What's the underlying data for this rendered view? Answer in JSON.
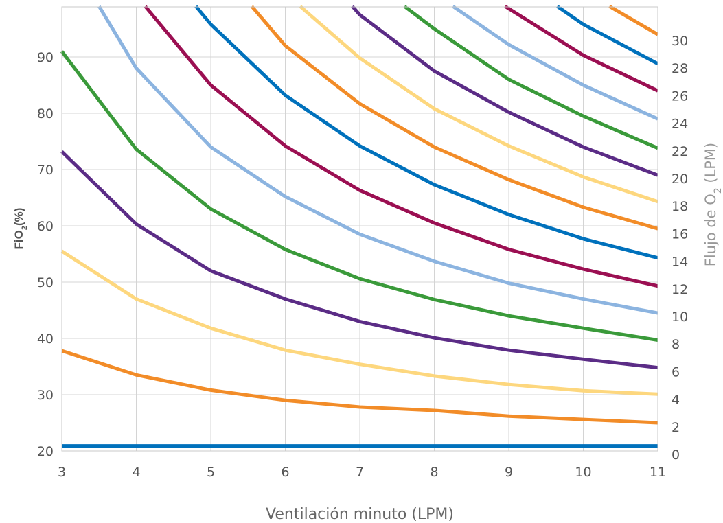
{
  "chart_data": {
    "type": "line",
    "xlabel": "Ventilación minuto (LPM)",
    "ylabel_main": "FiO",
    "ylabel_sub": "2",
    "ylabel_tail": "(%)",
    "y2label_main": "Flujo de O",
    "y2label_sub": "2",
    "y2label_tail": " (LPM)",
    "xlim": [
      3,
      11
    ],
    "ylim": [
      20,
      99
    ],
    "y2lim": [
      0,
      32
    ],
    "x_ticks": [
      "3",
      "4",
      "5",
      "6",
      "7",
      "8",
      "9",
      "10",
      "11"
    ],
    "y_ticks": [
      "20",
      "30",
      "40",
      "50",
      "60",
      "70",
      "80",
      "90"
    ],
    "y2_ticks": [
      "0",
      "2",
      "4",
      "6",
      "8",
      "10",
      "12",
      "14",
      "16",
      "18",
      "20",
      "22",
      "24",
      "26",
      "28",
      "30"
    ],
    "grid": true,
    "x": [
      3,
      4,
      5,
      6,
      7,
      8,
      9,
      10,
      11
    ],
    "series": [
      {
        "flow": 0,
        "color": "#0071bc",
        "values": [
          20.9,
          20.9,
          20.9,
          20.9,
          20.9,
          20.9,
          20.9,
          20.9,
          20.9
        ]
      },
      {
        "flow": 2,
        "color": "#f28c28",
        "values": [
          37.8,
          33.5,
          30.8,
          29.0,
          27.8,
          27.2,
          26.2,
          25.6,
          25.0
        ]
      },
      {
        "flow": 4,
        "color": "#fdd77e",
        "values": [
          55.5,
          47.0,
          41.8,
          37.9,
          35.4,
          33.3,
          31.8,
          30.7,
          30.1
        ]
      },
      {
        "flow": 6,
        "color": "#5b2c86",
        "values": [
          73.2,
          60.3,
          52.0,
          47.0,
          43.0,
          40.1,
          37.9,
          36.3,
          34.8
        ]
      },
      {
        "flow": 8,
        "color": "#3a9a3a",
        "values": [
          91.0,
          73.6,
          63.0,
          55.8,
          50.6,
          46.9,
          44.0,
          41.8,
          39.7
        ]
      },
      {
        "flow": 10,
        "color": "#8cb4e0",
        "x": [
          3.5,
          4,
          5,
          6,
          7,
          8,
          9,
          10,
          11
        ],
        "values": [
          99,
          88.0,
          74.0,
          65.2,
          58.5,
          53.7,
          49.8,
          47.0,
          44.5
        ]
      },
      {
        "flow": 12,
        "color": "#9b0f52",
        "x": [
          4.12,
          5,
          6,
          7,
          8,
          9,
          10,
          11
        ],
        "values": [
          99,
          85.0,
          74.2,
          66.3,
          60.5,
          55.8,
          52.3,
          49.3
        ]
      },
      {
        "flow": 14,
        "color": "#0071bc",
        "x": [
          4.8,
          5,
          6,
          7,
          8,
          9,
          10,
          11
        ],
        "values": [
          99,
          95.8,
          83.2,
          74.2,
          67.3,
          62.0,
          57.7,
          54.3
        ]
      },
      {
        "flow": 16,
        "color": "#f28c28",
        "x": [
          5.55,
          6,
          7,
          8,
          9,
          10,
          11
        ],
        "values": [
          99,
          92.0,
          81.7,
          74.0,
          68.2,
          63.3,
          59.5
        ]
      },
      {
        "flow": 18,
        "color": "#fdd77e",
        "x": [
          6.2,
          7,
          8,
          9,
          10,
          11
        ],
        "values": [
          99,
          89.8,
          80.8,
          74.2,
          68.7,
          64.3
        ]
      },
      {
        "flow": 20,
        "color": "#5b2c86",
        "x": [
          6.9,
          7,
          8,
          9,
          10,
          11
        ],
        "values": [
          99,
          97.5,
          87.5,
          80.2,
          74.0,
          69.0
        ]
      },
      {
        "flow": 22,
        "color": "#3a9a3a",
        "x": [
          7.6,
          8,
          9,
          10,
          11
        ],
        "values": [
          99,
          95.0,
          86.0,
          79.5,
          73.8
        ]
      },
      {
        "flow": 24,
        "color": "#8cb4e0",
        "x": [
          8.25,
          9,
          10,
          11
        ],
        "values": [
          99,
          92.2,
          85.0,
          79.0
        ]
      },
      {
        "flow": 26,
        "color": "#9b0f52",
        "x": [
          8.95,
          10,
          11
        ],
        "values": [
          99,
          90.3,
          84.0
        ]
      },
      {
        "flow": 28,
        "color": "#0071bc",
        "x": [
          9.65,
          10,
          11
        ],
        "values": [
          99,
          95.8,
          88.8
        ]
      },
      {
        "flow": 30,
        "color": "#f28c28",
        "x": [
          10.35,
          11
        ],
        "values": [
          99,
          94.0
        ]
      }
    ]
  }
}
